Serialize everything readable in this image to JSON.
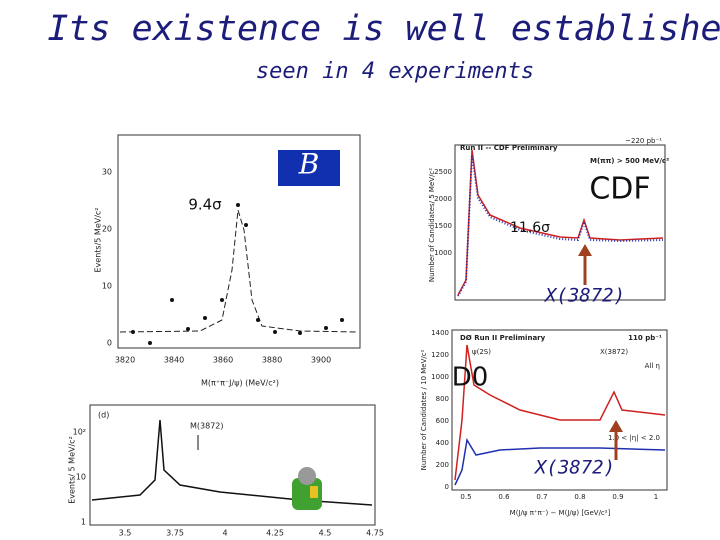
{
  "title": "Its existence is well established",
  "subtitle": "seen in 4 experiments",
  "belle": {
    "y_label": "Events/5 MeV/c²",
    "x_label": "M(π⁺π⁻J/ψ) (MeV/c²)",
    "yticks": [
      "0",
      "10",
      "20",
      "30"
    ],
    "xticks": [
      "3820",
      "3840",
      "3860",
      "3880",
      "3900"
    ],
    "significance": "9.4σ"
  },
  "cdf": {
    "header": "Run II -- CDF Preliminary",
    "lumi": "~220 pb⁻¹",
    "cut": "M(ππ) > 500 MeV/c²",
    "y_label": "Number of Candidates/ 5 MeV/c²",
    "yticks": [
      "2500",
      "2000",
      "1500",
      "1000"
    ],
    "label": "CDF",
    "significance": "11.6σ",
    "peak_label": "X(3872)"
  },
  "d0": {
    "header": "DØ Run II Preliminary",
    "lumi": "110 pb⁻¹",
    "psi2s": "ψ(2S)",
    "x3872": "X(3872)",
    "all_eta": "All η",
    "eta_cut": "1.0 < |η| < 2.0",
    "y_label": "Number of Candidates / 10 MeV/c²",
    "x_label": "M(J/ψ π⁺π⁻) − M(J/ψ) [GeV/c²]",
    "yticks": [
      "1400",
      "1200",
      "1000",
      "800",
      "600",
      "400",
      "200",
      "0"
    ],
    "xticks": [
      "0.5",
      "0.6",
      "0.7",
      "0.8",
      "0.9",
      "1"
    ],
    "label": "D0",
    "peak_label": "X(3872)"
  },
  "e705": {
    "panel": "(d)",
    "marker": "M(3872)",
    "y_label": "Events/ 5 MeV/c²",
    "yticks": [
      "10²",
      "10",
      "1"
    ],
    "xticks": [
      "3.5",
      "3.75",
      "4",
      "4.25",
      "4.5",
      "4.75"
    ]
  }
}
